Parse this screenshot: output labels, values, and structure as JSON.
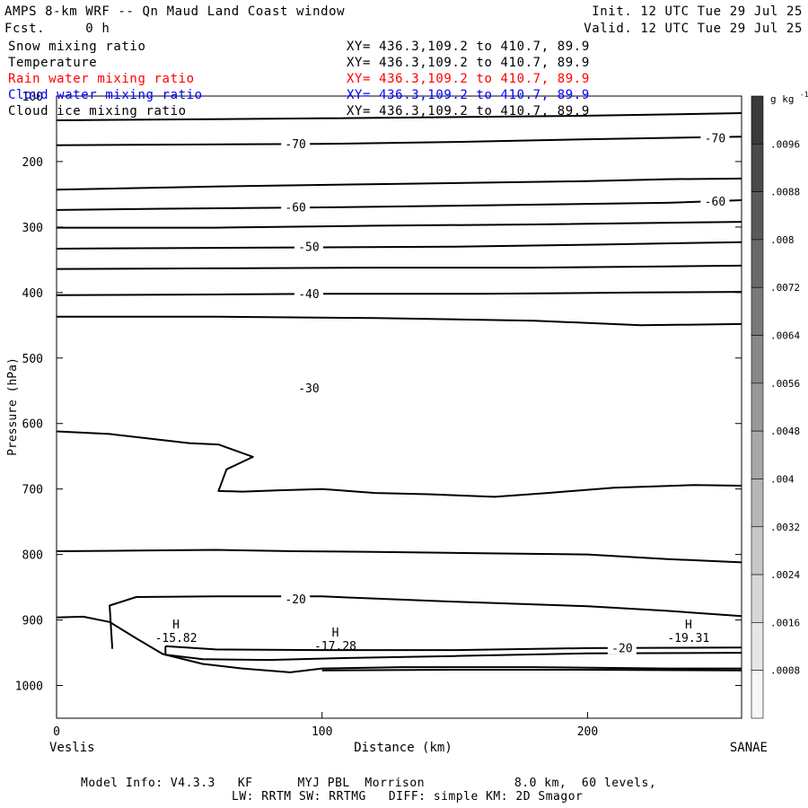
{
  "header": {
    "title": "AMPS 8-km WRF -- Qn Maud Land Coast window",
    "fcst": "Fcst.     0 h",
    "init": "Init. 12 UTC Tue 29 Jul 25",
    "valid": "Valid. 12 UTC Tue 29 Jul 25"
  },
  "fields": [
    {
      "label": "Snow mixing ratio",
      "xy": "XY= 436.3,109.2 to 410.7, 89.9",
      "color": "#000000"
    },
    {
      "label": "Temperature",
      "xy": "XY= 436.3,109.2 to 410.7, 89.9",
      "color": "#000000"
    },
    {
      "label": "Rain water mixing ratio",
      "xy": "XY= 436.3,109.2 to 410.7, 89.9",
      "color": "#ff0000"
    },
    {
      "label": "Cloud water mixing ratio",
      "xy": "XY= 436.3,109.2 to 410.7, 89.9",
      "color": "#0000ff"
    },
    {
      "label": "Cloud ice mixing ratio",
      "xy": "XY= 436.3,109.2 to 410.7, 89.9",
      "color": "#000000"
    }
  ],
  "footer": {
    "line1": "Model Info: V4.3.3   KF      MYJ PBL  Morrison            8.0 km,  60 levels,",
    "line2": "LW: RRTM SW: RRTMG   DIFF: simple KM: 2D Smagor"
  },
  "chart_data": {
    "type": "contour",
    "ylabel": "Pressure (hPa)",
    "xlabel": "Distance (km)",
    "x_start_label": "Veslis",
    "x_end_label": "SANAE",
    "xlim": [
      0,
      258
    ],
    "ylim": [
      1050,
      100
    ],
    "x_ticks": [
      0,
      100,
      200
    ],
    "y_ticks": [
      100,
      200,
      300,
      400,
      500,
      600,
      700,
      800,
      900,
      1000
    ],
    "colorbar": {
      "unit": "g kg",
      "unit_exp": "-1",
      "labels": [
        ".0096",
        ".0088",
        ".008",
        ".0072",
        ".0064",
        ".0056",
        ".0048",
        ".004",
        ".0032",
        ".0024",
        ".0016",
        ".0008"
      ],
      "min": 0,
      "max": 0.0104,
      "step": 0.0008,
      "dark": "#3a3a3a",
      "light": "#f6f6f6"
    },
    "contours": [
      {
        "points": [
          [
            0,
            137
          ],
          [
            100,
            134
          ],
          [
            200,
            130
          ],
          [
            258,
            126
          ]
        ]
      },
      {
        "value": -70,
        "label": "-70",
        "label_at": [
          [
            90,
            174
          ],
          [
            248,
            165
          ]
        ],
        "points": [
          [
            0,
            175
          ],
          [
            50,
            174
          ],
          [
            100,
            173
          ],
          [
            150,
            170
          ],
          [
            200,
            166
          ],
          [
            258,
            162
          ]
        ]
      },
      {
        "points": [
          [
            0,
            243
          ],
          [
            60,
            238
          ],
          [
            130,
            234
          ],
          [
            200,
            230
          ],
          [
            230,
            227
          ],
          [
            258,
            226
          ]
        ]
      },
      {
        "value": -60,
        "label": "-60",
        "label_at": [
          [
            90,
            271
          ],
          [
            248,
            262
          ]
        ],
        "points": [
          [
            0,
            274
          ],
          [
            40,
            272
          ],
          [
            100,
            270
          ],
          [
            160,
            267
          ],
          [
            230,
            263
          ],
          [
            258,
            259
          ]
        ]
      },
      {
        "points": [
          [
            0,
            301
          ],
          [
            60,
            301
          ],
          [
            120,
            298
          ],
          [
            180,
            296
          ],
          [
            258,
            292
          ]
        ]
      },
      {
        "value": -50,
        "label": "-50",
        "label_at": [
          [
            95,
            331
          ]
        ],
        "points": [
          [
            0,
            333
          ],
          [
            50,
            332
          ],
          [
            100,
            331
          ],
          [
            150,
            330
          ],
          [
            200,
            327
          ],
          [
            258,
            323
          ]
        ]
      },
      {
        "points": [
          [
            0,
            364
          ],
          [
            60,
            363
          ],
          [
            120,
            362
          ],
          [
            180,
            362
          ],
          [
            230,
            360
          ],
          [
            258,
            359
          ]
        ]
      },
      {
        "value": -40,
        "label": "-40",
        "label_at": [
          [
            95,
            403
          ]
        ],
        "points": [
          [
            0,
            404
          ],
          [
            60,
            403
          ],
          [
            100,
            402
          ],
          [
            160,
            402
          ],
          [
            220,
            400
          ],
          [
            258,
            399
          ]
        ]
      },
      {
        "points": [
          [
            0,
            437
          ],
          [
            60,
            437
          ],
          [
            120,
            439
          ],
          [
            180,
            443
          ],
          [
            220,
            450
          ],
          [
            258,
            448
          ]
        ]
      },
      {
        "value": -30,
        "label": "-30",
        "label_at": [
          [
            95,
            547
          ]
        ],
        "points": [
          [
            0,
            612
          ],
          [
            20,
            616
          ],
          [
            50,
            630
          ],
          [
            61,
            632
          ],
          [
            74,
            651
          ],
          [
            64,
            670
          ],
          [
            61,
            703
          ],
          [
            70,
            704
          ],
          [
            84,
            702
          ],
          [
            100,
            700
          ],
          [
            120,
            706
          ],
          [
            140,
            708
          ],
          [
            165,
            712
          ],
          [
            185,
            706
          ],
          [
            210,
            698
          ],
          [
            240,
            694
          ],
          [
            258,
            695
          ]
        ]
      },
      {
        "points": [
          [
            0,
            795
          ],
          [
            30,
            794
          ],
          [
            60,
            793
          ],
          [
            90,
            795
          ],
          [
            120,
            796
          ],
          [
            160,
            798
          ],
          [
            200,
            800
          ],
          [
            230,
            807
          ],
          [
            258,
            812
          ]
        ]
      },
      {
        "value": -20,
        "label": "-20",
        "label_at": [
          [
            90,
            869
          ],
          [
            213,
            944
          ]
        ],
        "points": [
          [
            21,
            944
          ],
          [
            20,
            878
          ],
          [
            30,
            865
          ],
          [
            60,
            864
          ],
          [
            100,
            864
          ],
          [
            150,
            872
          ],
          [
            200,
            879
          ],
          [
            230,
            886
          ],
          [
            258,
            894
          ]
        ]
      },
      {
        "points": [
          [
            0,
            896
          ],
          [
            10,
            895
          ],
          [
            20,
            903
          ],
          [
            30,
            928
          ],
          [
            40,
            952
          ],
          [
            55,
            967
          ],
          [
            70,
            974
          ],
          [
            88,
            980
          ],
          [
            100,
            974
          ],
          [
            130,
            972
          ],
          [
            180,
            972
          ],
          [
            230,
            974
          ],
          [
            258,
            974
          ]
        ]
      },
      {
        "points": [
          [
            41,
            940
          ],
          [
            41,
            953
          ],
          [
            55,
            960
          ],
          [
            80,
            961
          ],
          [
            110,
            958
          ],
          [
            150,
            955
          ],
          [
            200,
            951
          ],
          [
            258,
            950
          ]
        ]
      },
      {
        "points": [
          [
            41,
            940
          ],
          [
            60,
            945
          ],
          [
            100,
            946
          ],
          [
            150,
            946
          ],
          [
            200,
            943
          ],
          [
            258,
            942
          ]
        ]
      },
      {
        "points": [
          [
            100,
            977
          ],
          [
            150,
            976
          ],
          [
            200,
            976
          ],
          [
            258,
            977
          ]
        ]
      }
    ],
    "highs": [
      {
        "x": 45,
        "p": 913,
        "label": "H",
        "value": "-15.82"
      },
      {
        "x": 105,
        "p": 925,
        "label": "H",
        "value": "-17.28"
      },
      {
        "x": 238,
        "p": 913,
        "label": "H",
        "value": "-19.31"
      }
    ]
  }
}
